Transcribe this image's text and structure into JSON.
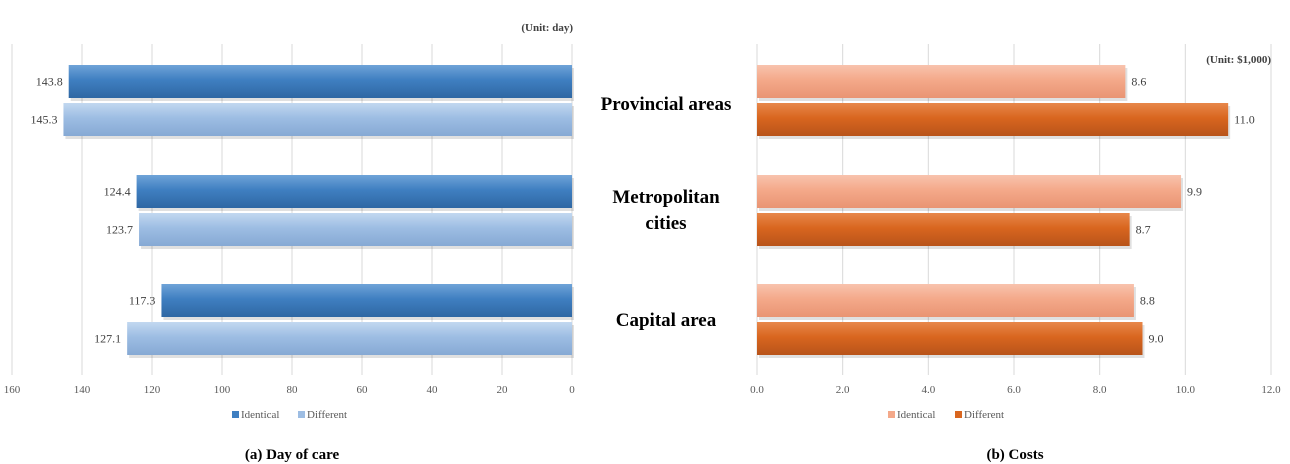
{
  "chart_data": [
    {
      "type": "bar",
      "orientation": "horizontal-reversed",
      "caption": "(a) Day of care",
      "unit_note": "(Unit: day)",
      "categories": [
        "Provincial areas",
        "Metropolitan cities",
        "Capital area"
      ],
      "series": [
        {
          "name": "Identical",
          "color": "#3f7fc1",
          "values": [
            143.8,
            124.4,
            117.3
          ],
          "labels": [
            "143.8",
            "124.4",
            "117.3"
          ]
        },
        {
          "name": "Different",
          "color": "#9dbde3",
          "values": [
            145.3,
            123.7,
            127.1
          ],
          "labels": [
            "145.3",
            "123.7",
            "127.1"
          ]
        }
      ],
      "xlim": [
        0,
        160
      ],
      "ticks": [
        "160",
        "140",
        "120",
        "100",
        "80",
        "60",
        "40",
        "20",
        "0"
      ],
      "grid": true,
      "legend": "bottom"
    },
    {
      "type": "bar",
      "orientation": "horizontal",
      "caption": "(b) Costs",
      "unit_note": "(Unit: $1,000)",
      "categories": [
        "Provincial areas",
        "Metropolitan cities",
        "Capital area"
      ],
      "series": [
        {
          "name": "Identical",
          "color": "#f4a98a",
          "values": [
            8.6,
            9.9,
            8.8
          ],
          "labels": [
            "8.6",
            "9.9",
            "8.8"
          ]
        },
        {
          "name": "Different",
          "color": "#d9661f",
          "values": [
            11.0,
            8.7,
            9.0
          ],
          "labels": [
            "11.0",
            "8.7",
            "9.0"
          ]
        }
      ],
      "xlim": [
        0,
        12
      ],
      "ticks": [
        "0.0",
        "2.0",
        "4.0",
        "6.0",
        "8.0",
        "10.0",
        "12.0"
      ],
      "grid": true,
      "legend": "bottom"
    }
  ],
  "category_labels": [
    "Provincial areas",
    "Metropolitan",
    "cities",
    "Capital area"
  ]
}
